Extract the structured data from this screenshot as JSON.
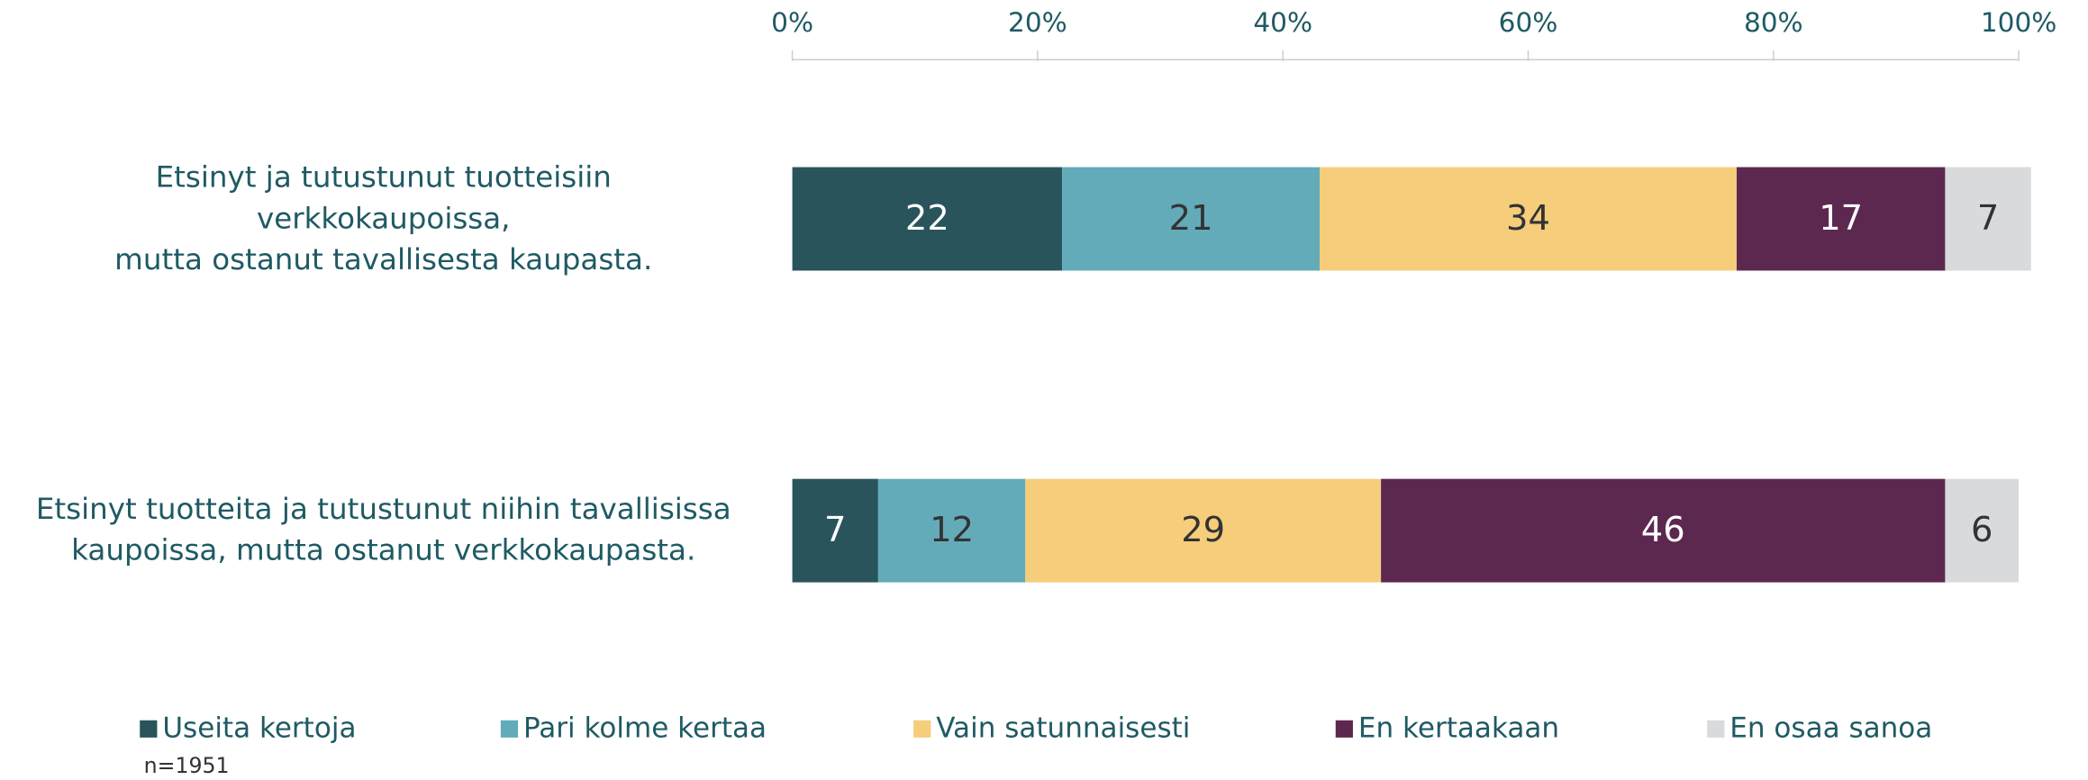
{
  "chart_data": {
    "type": "stacked-barh",
    "categories": [
      "Etsinyt ja tutustunut tuotteisiin\nverkkokaupoissa,\nmutta ostanut tavallisesta kaupasta.",
      "Etsinyt tuotteita ja tutustunut niihin tavallisissa\nkaupoissa, mutta ostanut verkkokaupasta."
    ],
    "series": [
      {
        "name": "Useita kertoja",
        "color": "#2a545c",
        "values": [
          22,
          7
        ]
      },
      {
        "name": "Pari kolme kertaa",
        "color": "#63abb9",
        "values": [
          21,
          12
        ]
      },
      {
        "name": "Vain satunnaisesti",
        "color": "#f6cd7b",
        "values": [
          34,
          29
        ]
      },
      {
        "name": "En kertaakaan",
        "color": "#5c2850",
        "values": [
          17,
          46
        ]
      },
      {
        "name": "En osaa sanoa",
        "color": "#d9dadb",
        "values": [
          7,
          6
        ]
      }
    ],
    "xlim": [
      0,
      100
    ],
    "xticks": [
      {
        "value": 0,
        "label": "0%"
      },
      {
        "value": 20,
        "label": "20%"
      },
      {
        "value": 40,
        "label": "40%"
      },
      {
        "value": 60,
        "label": "60%"
      },
      {
        "value": 80,
        "label": "80%"
      },
      {
        "value": 100,
        "label": "100%"
      }
    ],
    "legend": "bottom",
    "note": "n=1951"
  }
}
